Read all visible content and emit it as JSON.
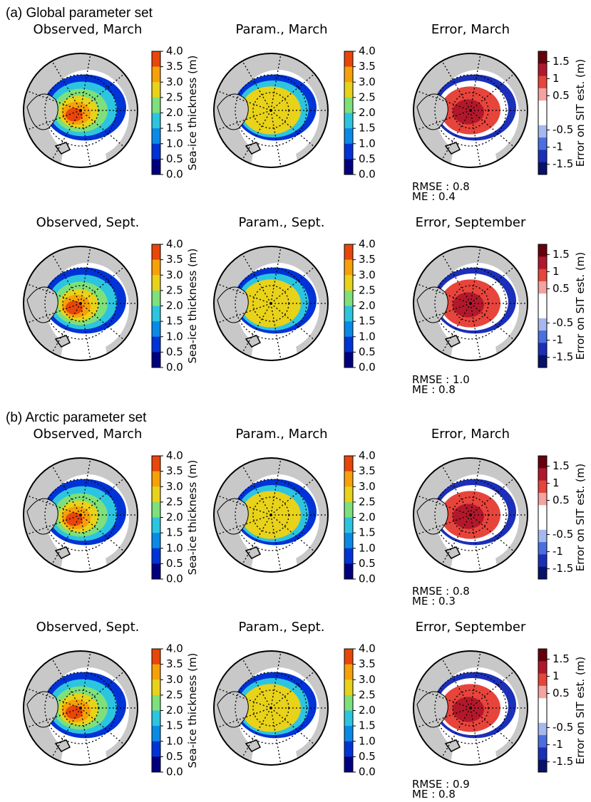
{
  "sections": [
    {
      "label": "(a) Global parameter set",
      "rows": [
        {
          "panels": [
            {
              "title": "Observed, March",
              "colorbar_ticks": [
                "4.0",
                "3.5",
                "3.0",
                "2.5",
                "2.0",
                "1.5",
                "1.0",
                "0.5",
                "0.0"
              ],
              "colorbar_label": "Sea-ice thickness (m)"
            },
            {
              "title": "Param., March",
              "colorbar_ticks": [
                "4.0",
                "3.5",
                "3.0",
                "2.5",
                "2.0",
                "1.5",
                "1.0",
                "0.5",
                "0.0"
              ]
            },
            {
              "title": "Error, March",
              "colorbar_ticks": [
                "1.5",
                "1",
                "0.5",
                "-0.5",
                "-1",
                "-1.5"
              ],
              "colorbar_label": "Error on SIT est. (m)",
              "rmse": "RMSE : 0.8",
              "me": "ME : 0.4"
            }
          ]
        },
        {
          "panels": [
            {
              "title": "Observed, Sept.",
              "colorbar_ticks": [
                "4.0",
                "3.5",
                "3.0",
                "2.5",
                "2.0",
                "1.5",
                "1.0",
                "0.5",
                "0.0"
              ],
              "colorbar_label": "Sea-ice thickness (m)"
            },
            {
              "title": "Param., Sept.",
              "colorbar_ticks": [
                "4.0",
                "3.5",
                "3.0",
                "2.5",
                "2.0",
                "1.5",
                "1.0",
                "0.5",
                "0.0"
              ]
            },
            {
              "title": "Error, September",
              "colorbar_ticks": [
                "1.5",
                "1",
                "0.5",
                "-0.5",
                "-1",
                "-1.5"
              ],
              "colorbar_label": "Error on SIT est. (m)",
              "rmse": "RMSE : 1.0",
              "me": "ME : 0.8"
            }
          ]
        }
      ]
    },
    {
      "label": "(b) Arctic parameter set",
      "rows": [
        {
          "panels": [
            {
              "title": "Observed, March",
              "colorbar_ticks": [
                "4.0",
                "3.5",
                "3.0",
                "2.5",
                "2.0",
                "1.5",
                "1.0",
                "0.5",
                "0.0"
              ],
              "colorbar_label": "Sea-ice thickness (m)"
            },
            {
              "title": "Param., March",
              "colorbar_ticks": [
                "4.0",
                "3.5",
                "3.0",
                "2.5",
                "2.0",
                "1.5",
                "1.0",
                "0.5",
                "0.0"
              ]
            },
            {
              "title": "Error, March",
              "colorbar_ticks": [
                "1.5",
                "1",
                "0.5",
                "-0.5",
                "-1",
                "-1.5"
              ],
              "colorbar_label": "Error on SIT est. (m)",
              "rmse": "RMSE : 0.8",
              "me": "ME : 0.3"
            }
          ]
        },
        {
          "panels": [
            {
              "title": "Observed, Sept.",
              "colorbar_ticks": [
                "4.0",
                "3.5",
                "3.0",
                "2.5",
                "2.0",
                "1.5",
                "1.0",
                "0.5",
                "0.0"
              ],
              "colorbar_label": "Sea-ice thickness (m)"
            },
            {
              "title": "Param., Sept.",
              "colorbar_ticks": [
                "4.0",
                "3.5",
                "3.0",
                "2.5",
                "2.0",
                "1.5",
                "1.0",
                "0.5",
                "0.0"
              ]
            },
            {
              "title": "Error, September",
              "colorbar_ticks": [
                "1.5",
                "1",
                "0.5",
                "-0.5",
                "-1",
                "-1.5"
              ],
              "colorbar_label": "Error on SIT est. (m)",
              "rmse": "RMSE : 0.9",
              "me": "ME : 0.8"
            }
          ]
        }
      ]
    }
  ]
}
